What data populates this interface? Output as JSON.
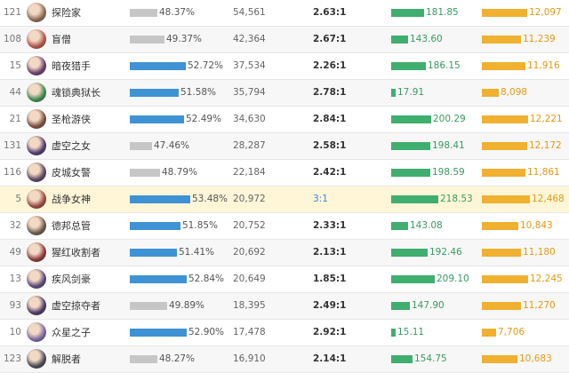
{
  "colors": {
    "winrate_high": "#3f92d3",
    "winrate_low": "#c6c6c6",
    "damage": "#3fae6f",
    "gold": "#f0b030",
    "highlight_row": "#fff6d8"
  },
  "scales": {
    "damage_max": 220,
    "gold_max": 12500,
    "winrate_min": 44,
    "winrate_max": 54
  },
  "rows": [
    {
      "id": "121",
      "name": "探险家",
      "winrate": "48.37%",
      "winrate_value": 48.37,
      "games": "54,561",
      "kda": "2.63:1",
      "damage": "181.85",
      "damage_value": 181.85,
      "gold": "12,097",
      "gold_value": 12097,
      "avatar_color": "#8b6a52"
    },
    {
      "id": "108",
      "name": "盲僧",
      "winrate": "49.37%",
      "winrate_value": 49.37,
      "games": "42,364",
      "kda": "2.67:1",
      "damage": "143.60",
      "damage_value": 143.6,
      "gold": "11,239",
      "gold_value": 11239,
      "avatar_color": "#b4564a"
    },
    {
      "id": "15",
      "name": "暗夜猎手",
      "winrate": "52.72%",
      "winrate_value": 52.72,
      "games": "37,534",
      "kda": "2.26:1",
      "damage": "186.15",
      "damage_value": 186.15,
      "gold": "11,916",
      "gold_value": 11916,
      "avatar_color": "#6a3f6e"
    },
    {
      "id": "44",
      "name": "魂锁典狱长",
      "winrate": "51.58%",
      "winrate_value": 51.58,
      "games": "35,794",
      "kda": "2.78:1",
      "damage": "17.91",
      "damage_value": 17.91,
      "gold": "8,098",
      "gold_value": 8098,
      "avatar_color": "#3f8a4f"
    },
    {
      "id": "21",
      "name": "圣枪游侠",
      "winrate": "52.49%",
      "winrate_value": 52.49,
      "games": "34,630",
      "kda": "2.84:1",
      "damage": "200.29",
      "damage_value": 200.29,
      "gold": "12,221",
      "gold_value": 12221,
      "avatar_color": "#7a5040"
    },
    {
      "id": "131",
      "name": "虚空之女",
      "winrate": "47.46%",
      "winrate_value": 47.46,
      "games": "28,287",
      "kda": "2.58:1",
      "damage": "198.41",
      "damage_value": 198.41,
      "gold": "12,172",
      "gold_value": 12172,
      "avatar_color": "#4e3c70"
    },
    {
      "id": "116",
      "name": "皮城女警",
      "winrate": "48.79%",
      "winrate_value": 48.79,
      "games": "22,184",
      "kda": "2.42:1",
      "damage": "198.59",
      "damage_value": 198.59,
      "gold": "11,861",
      "gold_value": 11861,
      "avatar_color": "#5a4660"
    },
    {
      "id": "5",
      "name": "战争女神",
      "winrate": "53.48%",
      "winrate_value": 53.48,
      "games": "20,972",
      "kda": "3:1",
      "damage": "218.53",
      "damage_value": 218.53,
      "gold": "12,468",
      "gold_value": 12468,
      "avatar_color": "#9a4a42",
      "highlight": true
    },
    {
      "id": "32",
      "name": "德邦总管",
      "winrate": "51.85%",
      "winrate_value": 51.85,
      "games": "20,752",
      "kda": "2.33:1",
      "damage": "143.08",
      "damage_value": 143.08,
      "gold": "10,843",
      "gold_value": 10843,
      "avatar_color": "#6e5a4c"
    },
    {
      "id": "49",
      "name": "猩红收割者",
      "winrate": "51.41%",
      "winrate_value": 51.41,
      "games": "20,692",
      "kda": "2.13:1",
      "damage": "192.46",
      "damage_value": 192.46,
      "gold": "11,180",
      "gold_value": 11180,
      "avatar_color": "#8a3a3a"
    },
    {
      "id": "13",
      "name": "疾风剑豪",
      "winrate": "52.84%",
      "winrate_value": 52.84,
      "games": "20,649",
      "kda": "1.85:1",
      "damage": "209.10",
      "damage_value": 209.1,
      "gold": "12,245",
      "gold_value": 12245,
      "avatar_color": "#5a4a78"
    },
    {
      "id": "93",
      "name": "虚空掠夺者",
      "winrate": "49.89%",
      "winrate_value": 49.89,
      "games": "18,395",
      "kda": "2.49:1",
      "damage": "147.90",
      "damage_value": 147.9,
      "gold": "11,270",
      "gold_value": 11270,
      "avatar_color": "#4a3a66"
    },
    {
      "id": "10",
      "name": "众星之子",
      "winrate": "52.90%",
      "winrate_value": 52.9,
      "games": "17,478",
      "kda": "2.92:1",
      "damage": "15.11",
      "damage_value": 15.11,
      "gold": "7,706",
      "gold_value": 7706,
      "avatar_color": "#7a68a0"
    },
    {
      "id": "123",
      "name": "解脱者",
      "winrate": "48.27%",
      "winrate_value": 48.27,
      "games": "16,910",
      "kda": "2.14:1",
      "damage": "154.75",
      "damage_value": 154.75,
      "gold": "10,683",
      "gold_value": 10683,
      "avatar_color": "#4a4a58"
    }
  ]
}
